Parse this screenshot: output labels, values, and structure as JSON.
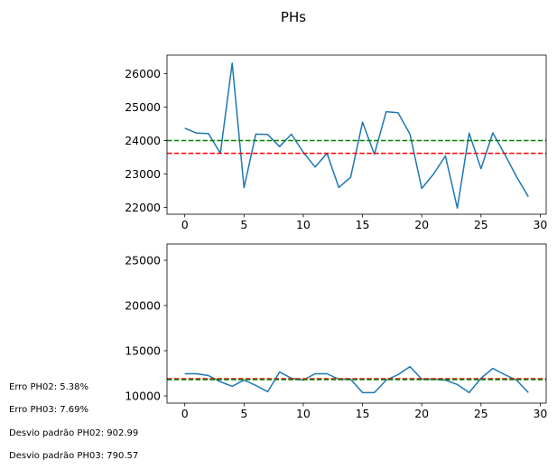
{
  "figure": {
    "title": "PHs"
  },
  "notes": {
    "erro_ph02": "Erro PH02: 5.38%",
    "erro_ph03": "Erro PH03: 7.69%",
    "desvio_ph02": "Desvio padrão PH02: 902.99",
    "desvio_ph03": "Desvio padrão PH03: 790.57"
  },
  "chart_data": [
    {
      "type": "line",
      "title": "",
      "xlabel": "",
      "ylabel": "",
      "xlim": [
        -1.5,
        30.5
      ],
      "ylim": [
        21800,
        26550
      ],
      "xticks": [
        0,
        5,
        10,
        15,
        20,
        25,
        30
      ],
      "yticks": [
        22000,
        23000,
        24000,
        25000,
        26000
      ],
      "grid": false,
      "series": [
        {
          "color": "#1f77b4",
          "x": [
            0,
            1,
            2,
            3,
            4,
            5,
            6,
            7,
            8,
            9,
            10,
            11,
            12,
            13,
            14,
            15,
            16,
            17,
            18,
            19,
            20,
            21,
            22,
            23,
            24,
            25,
            26,
            27,
            28,
            29
          ],
          "values": [
            24370,
            24220,
            24210,
            23620,
            26310,
            22590,
            24190,
            24180,
            23820,
            24190,
            23650,
            23210,
            23620,
            22600,
            22900,
            24550,
            23590,
            24860,
            24830,
            24190,
            22570,
            23000,
            23540,
            21980,
            24220,
            23160,
            24230,
            23590,
            22920,
            22320
          ]
        }
      ],
      "hlines": [
        {
          "y": 24000,
          "color": "#008000",
          "style": "dashed"
        },
        {
          "y": 23620,
          "color": "#ff0000",
          "style": "dashed"
        }
      ]
    },
    {
      "type": "line",
      "title": "",
      "xlabel": "",
      "ylabel": "",
      "xlim": [
        -1.5,
        30.5
      ],
      "ylim": [
        9200,
        26800
      ],
      "xticks": [
        0,
        5,
        10,
        15,
        20,
        25,
        30
      ],
      "yticks": [
        10000,
        15000,
        20000,
        25000
      ],
      "grid": false,
      "series": [
        {
          "color": "#1f77b4",
          "x": [
            0,
            1,
            2,
            3,
            4,
            5,
            6,
            7,
            8,
            9,
            10,
            11,
            12,
            13,
            14,
            15,
            16,
            17,
            18,
            19,
            20,
            21,
            22,
            23,
            24,
            25,
            26,
            27,
            28,
            29
          ],
          "values": [
            12450,
            12450,
            12250,
            11560,
            11060,
            11750,
            11160,
            10460,
            12640,
            11950,
            11750,
            12450,
            12450,
            11850,
            11850,
            10360,
            10360,
            11750,
            12350,
            13240,
            11850,
            11850,
            11750,
            11260,
            10360,
            11950,
            13040,
            12350,
            11750,
            10360
          ]
        }
      ],
      "hlines": [
        {
          "y": 11900,
          "color": "#ff0000",
          "style": "dashed"
        },
        {
          "y": 11800,
          "color": "#008000",
          "style": "dashed"
        }
      ]
    }
  ]
}
